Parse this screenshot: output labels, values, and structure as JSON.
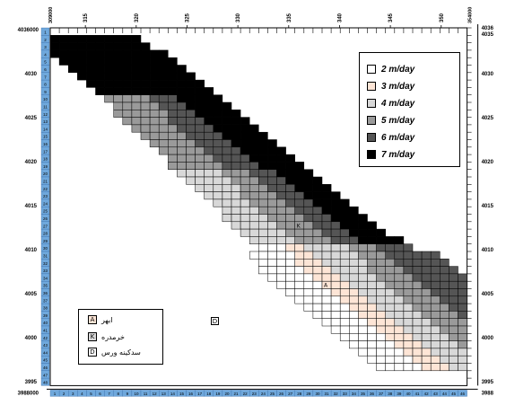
{
  "map": {
    "x_ticks": [
      "315",
      "320",
      "325",
      "330",
      "335",
      "340",
      "345",
      "350"
    ],
    "x_top_left_label": "309000",
    "x_top_right_label": "354000",
    "y_ticks": [
      "4030",
      "4025",
      "4020",
      "4015",
      "4010",
      "4005",
      "4000",
      "3995",
      "3990"
    ],
    "corner_top_left": "4036000",
    "corner_bottom_left": "3988000",
    "corner_top_right": "4036",
    "corner_top_right_sub": "4035",
    "corner_bottom_right": "3988",
    "columns": 46,
    "rows": 48
  },
  "legend": {
    "items": [
      {
        "label": "2 m/day",
        "color": "#ffffff"
      },
      {
        "label": "3 m/day",
        "color": "#fde5d6"
      },
      {
        "label": "4 m/day",
        "color": "#d8d8d8"
      },
      {
        "label": "5 m/day",
        "color": "#9a9a9a"
      },
      {
        "label": "6 m/day",
        "color": "#555555"
      },
      {
        "label": "7 m/day",
        "color": "#000000"
      }
    ]
  },
  "places": {
    "items": [
      {
        "code": "A",
        "name": "ابهر",
        "color": "#fde5d6"
      },
      {
        "code": "K",
        "name": "خرمدره",
        "color": "#d8d8d8"
      },
      {
        "code": "D",
        "name": "سدکینه ورس",
        "color": "#ffffff"
      }
    ],
    "map_markers": [
      {
        "code": "K",
        "col": 28,
        "row": 27
      },
      {
        "code": "A",
        "col": 31,
        "row": 35
      }
    ],
    "d_code": "D"
  }
}
